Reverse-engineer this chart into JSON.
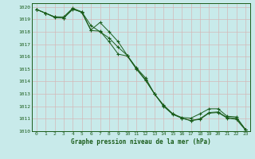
{
  "title": "Graphe pression niveau de la mer (hPa)",
  "bg_color": "#c8eaea",
  "grid_color": "#d4b8b8",
  "line_color": "#1a5c1a",
  "xmin": 0,
  "xmax": 23,
  "ymin": 1010,
  "ymax": 1020,
  "hours": [
    0,
    1,
    2,
    3,
    4,
    5,
    6,
    7,
    8,
    9,
    10,
    11,
    12,
    13,
    14,
    15,
    16,
    17,
    18,
    19,
    20,
    21,
    22,
    23
  ],
  "line1": [
    1019.8,
    1019.5,
    1019.15,
    1019.1,
    1019.85,
    1019.55,
    1018.1,
    1018.05,
    1017.2,
    1016.2,
    1016.05,
    1015.0,
    1014.1,
    1013.0,
    1012.0,
    1011.35,
    1011.05,
    1010.85,
    1010.95,
    1011.45,
    1011.5,
    1011.05,
    1010.95,
    1010.1
  ],
  "line2": [
    1019.8,
    1019.5,
    1019.2,
    1019.1,
    1019.8,
    1019.6,
    1018.5,
    1018.0,
    1017.5,
    1016.75,
    1016.1,
    1015.05,
    1014.15,
    1013.0,
    1012.05,
    1011.4,
    1011.05,
    1010.85,
    1011.0,
    1011.5,
    1011.55,
    1011.1,
    1011.05,
    1010.15
  ],
  "line3": [
    1019.8,
    1019.5,
    1019.2,
    1019.2,
    1019.9,
    1019.6,
    1018.15,
    1018.75,
    1018.0,
    1017.2,
    1016.1,
    1015.1,
    1014.3,
    1013.0,
    1012.1,
    1011.4,
    1011.1,
    1011.05,
    1011.4,
    1011.8,
    1011.8,
    1011.2,
    1011.15,
    1010.15
  ]
}
